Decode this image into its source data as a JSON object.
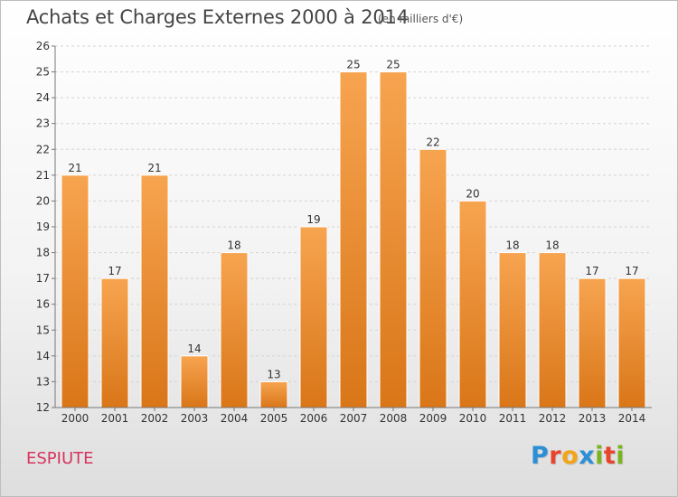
{
  "header": {
    "title": "Achats et Charges Externes 2000 à 2014",
    "subtitle": "(en milliers d'€)"
  },
  "footer": {
    "place": "ESPIUTE",
    "logo": {
      "letters": [
        {
          "char": "P",
          "color": "#2b8fd6"
        },
        {
          "char": "r",
          "color": "#e8452c"
        },
        {
          "char": "o",
          "color": "#f2a51a"
        },
        {
          "char": "x",
          "color": "#2b8fd6"
        },
        {
          "char": "i",
          "color": "#7ab51d"
        },
        {
          "char": "t",
          "color": "#e8452c"
        },
        {
          "char": "i",
          "color": "#7ab51d"
        }
      ]
    }
  },
  "chart_data": {
    "type": "bar",
    "categories": [
      "2000",
      "2001",
      "2002",
      "2003",
      "2004",
      "2005",
      "2006",
      "2007",
      "2008",
      "2009",
      "2010",
      "2011",
      "2012",
      "2013",
      "2014"
    ],
    "values": [
      21,
      17,
      21,
      14,
      18,
      13,
      19,
      25,
      25,
      22,
      20,
      18,
      18,
      17,
      17
    ],
    "ylim": [
      12,
      26
    ],
    "yticks": [
      12,
      13,
      14,
      15,
      16,
      17,
      18,
      19,
      20,
      21,
      22,
      23,
      24,
      25,
      26
    ],
    "grid": true,
    "bar_color_top": "#f7a450",
    "bar_color_bottom": "#d97618"
  }
}
